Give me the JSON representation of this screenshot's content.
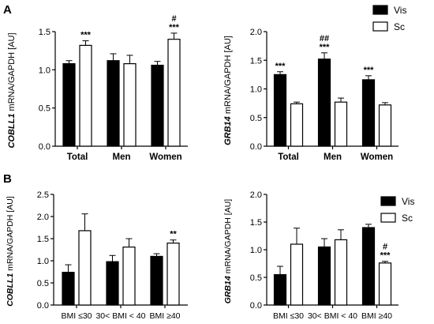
{
  "panels": [
    "A",
    "B"
  ],
  "chart_data": [
    {
      "type": "bar",
      "panel": "A",
      "ylabel_italic": "COBLL1",
      "ylabel_rest": " mRNA/GAPDH [AU]",
      "categories": [
        "Total",
        "Men",
        "Women"
      ],
      "ylim": [
        0,
        1.5
      ],
      "yticks": [
        "0.0",
        "0.5",
        "1.0",
        "1.5"
      ],
      "series": [
        {
          "name": "Vis",
          "values": [
            1.08,
            1.12,
            1.06
          ],
          "errors": [
            0.04,
            0.09,
            0.05
          ]
        },
        {
          "name": "Sc",
          "values": [
            1.32,
            1.08,
            1.4
          ],
          "errors": [
            0.06,
            0.11,
            0.08
          ]
        }
      ],
      "annotations": [
        {
          "category": "Total",
          "series": "Sc",
          "lines": [
            "***"
          ]
        },
        {
          "category": "Women",
          "series": "Sc",
          "lines": [
            "#",
            "***"
          ]
        }
      ]
    },
    {
      "type": "bar",
      "panel": "A",
      "ylabel_italic": "GRB14",
      "ylabel_rest": " mRNA/GAPDH [AU]",
      "categories": [
        "Total",
        "Men",
        "Women"
      ],
      "ylim": [
        0,
        2.0
      ],
      "yticks": [
        "0.0",
        "0.5",
        "1.0",
        "1.5",
        "2.0"
      ],
      "series": [
        {
          "name": "Vis",
          "values": [
            1.25,
            1.52,
            1.16
          ],
          "errors": [
            0.05,
            0.11,
            0.07
          ]
        },
        {
          "name": "Sc",
          "values": [
            0.74,
            0.77,
            0.72
          ],
          "errors": [
            0.03,
            0.07,
            0.04
          ]
        }
      ],
      "legend": {
        "placement": "top-right",
        "entries": [
          "Vis",
          "Sc"
        ]
      },
      "annotations": [
        {
          "category": "Total",
          "series": "Vis",
          "lines": [
            "***"
          ]
        },
        {
          "category": "Men",
          "series": "Vis",
          "lines": [
            "##",
            "***"
          ]
        },
        {
          "category": "Women",
          "series": "Vis",
          "lines": [
            "***"
          ]
        }
      ]
    },
    {
      "type": "bar",
      "panel": "B",
      "ylabel_italic": "COBLL1",
      "ylabel_rest": " mRNA/GAPDH [AU]",
      "categories": [
        "BMI ≤30",
        "30< BMI < 40",
        "BMI ≥40"
      ],
      "ylim": [
        0,
        2.5
      ],
      "yticks": [
        "0.0",
        "0.5",
        "1.0",
        "1.5",
        "2.0",
        "2.5"
      ],
      "series": [
        {
          "name": "Vis",
          "values": [
            0.74,
            0.98,
            1.1
          ],
          "errors": [
            0.17,
            0.14,
            0.06
          ]
        },
        {
          "name": "Sc",
          "values": [
            1.68,
            1.31,
            1.4
          ],
          "errors": [
            0.38,
            0.19,
            0.07
          ]
        }
      ],
      "annotations": [
        {
          "category": "BMI ≥40",
          "series": "Sc",
          "lines": [
            "**"
          ]
        }
      ]
    },
    {
      "type": "bar",
      "panel": "B",
      "ylabel_italic": "GRB14",
      "ylabel_rest": " mRNA/GAPDH [AU]",
      "categories": [
        "BMI ≤30",
        "30< BMI < 40",
        "BMI ≥40"
      ],
      "ylim": [
        0,
        2.0
      ],
      "yticks": [
        "0.0",
        "0.5",
        "1.0",
        "1.5",
        "2.0"
      ],
      "series": [
        {
          "name": "Vis",
          "values": [
            0.55,
            1.05,
            1.4
          ],
          "errors": [
            0.15,
            0.15,
            0.06
          ]
        },
        {
          "name": "Sc",
          "values": [
            1.1,
            1.18,
            0.76
          ],
          "errors": [
            0.29,
            0.18,
            0.03
          ]
        }
      ],
      "legend": {
        "placement": "top-right",
        "entries": [
          "Vis",
          "Sc"
        ]
      },
      "annotations": [
        {
          "category": "BMI ≥40",
          "series": "Sc",
          "lines": [
            "#",
            "***"
          ]
        }
      ]
    }
  ]
}
